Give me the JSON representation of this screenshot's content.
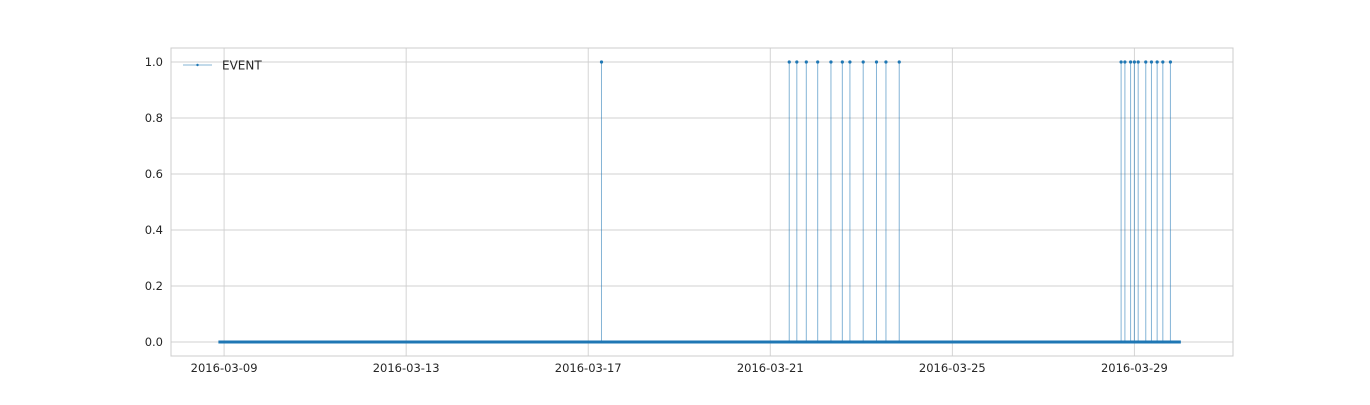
{
  "chart_data": {
    "type": "line",
    "title": "",
    "xlabel": "",
    "ylabel": "",
    "x_axis": {
      "kind": "date",
      "range": [
        "2016-03-07T20:00",
        "2016-03-31T04:00"
      ],
      "ticks": [
        "2016-03-09",
        "2016-03-13",
        "2016-03-17",
        "2016-03-21",
        "2016-03-25",
        "2016-03-29"
      ]
    },
    "y_axis": {
      "range": [
        -0.05,
        1.05
      ],
      "ticks": [
        0.0,
        0.2,
        0.4,
        0.6,
        0.8,
        1.0
      ],
      "tick_labels": [
        "0.0",
        "0.2",
        "0.4",
        "0.6",
        "0.8",
        "1.0"
      ]
    },
    "grid": true,
    "legend_position": "top-left",
    "series": [
      {
        "name": "EVENT",
        "color": "#1f77b4",
        "baseline_start": "2016-03-08T21:00",
        "baseline_end": "2016-03-30T00:30",
        "baseline_value": 0,
        "event_value": 1,
        "event_times": [
          "2016-03-17T07:00",
          "2016-03-21T10:00",
          "2016-03-21T14:00",
          "2016-03-21T19:00",
          "2016-03-22T01:00",
          "2016-03-22T08:00",
          "2016-03-22T14:00",
          "2016-03-22T18:00",
          "2016-03-23T01:00",
          "2016-03-23T08:00",
          "2016-03-23T13:00",
          "2016-03-23T20:00",
          "2016-03-28T17:00",
          "2016-03-28T19:00",
          "2016-03-28T22:00",
          "2016-03-29T00:00",
          "2016-03-29T02:00",
          "2016-03-29T06:00",
          "2016-03-29T09:00",
          "2016-03-29T12:00",
          "2016-03-29T15:00",
          "2016-03-29T19:00"
        ]
      }
    ]
  }
}
